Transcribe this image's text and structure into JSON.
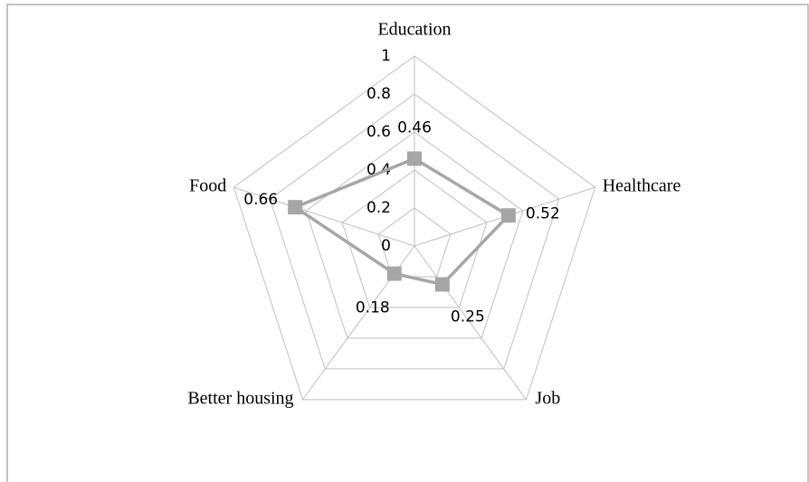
{
  "chart_data": {
    "type": "radar",
    "categories": [
      "Education",
      "Healthcare",
      "Job",
      "Better housing",
      "Food"
    ],
    "values": [
      0.46,
      0.52,
      0.25,
      0.18,
      0.66
    ],
    "color": "#a6a6a6",
    "rlim": [
      0,
      1
    ],
    "rticks": [
      0,
      0.2,
      0.4,
      0.6,
      0.8,
      1
    ],
    "grid": true
  }
}
